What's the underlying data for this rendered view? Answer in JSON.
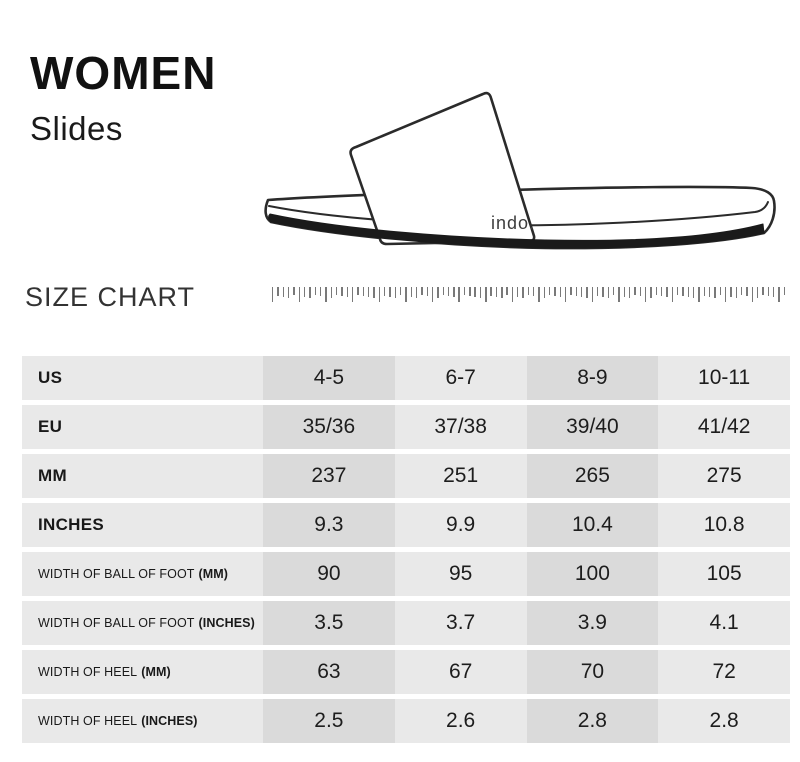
{
  "header": {
    "title": "WOMEN",
    "subtitle": "Slides"
  },
  "illustration": {
    "name": "slide-sandal-line-drawing",
    "logo_text": "indo."
  },
  "size_chart": {
    "heading": "SIZE CHART"
  },
  "colors": {
    "background": "#ffffff",
    "cell_light": "#e9e9e9",
    "cell_dark": "#dadada",
    "text": "#1d1d1d",
    "outline": "#2b2b2b"
  },
  "table": {
    "columns": 4,
    "rows": [
      {
        "label": "US",
        "label_suffix": "",
        "values": [
          "4-5",
          "6-7",
          "8-9",
          "10-11"
        ]
      },
      {
        "label": "EU",
        "label_suffix": "",
        "values": [
          "35/36",
          "37/38",
          "39/40",
          "41/42"
        ]
      },
      {
        "label": "MM",
        "label_suffix": "",
        "values": [
          "237",
          "251",
          "265",
          "275"
        ]
      },
      {
        "label": "INCHES",
        "label_suffix": "",
        "values": [
          "9.3",
          "9.9",
          "10.4",
          "10.8"
        ]
      },
      {
        "label": "WIDTH OF BALL OF FOOT",
        "label_suffix": "(MM)",
        "values": [
          "90",
          "95",
          "100",
          "105"
        ]
      },
      {
        "label": "WIDTH OF BALL OF FOOT",
        "label_suffix": "(INCHES)",
        "values": [
          "3.5",
          "3.7",
          "3.9",
          "4.1"
        ]
      },
      {
        "label": "WIDTH OF HEEL",
        "label_suffix": "(MM)",
        "values": [
          "63",
          "67",
          "70",
          "72"
        ]
      },
      {
        "label": "WIDTH OF HEEL",
        "label_suffix": "(INCHES)",
        "values": [
          "2.5",
          "2.6",
          "2.8",
          "2.8"
        ]
      }
    ]
  }
}
